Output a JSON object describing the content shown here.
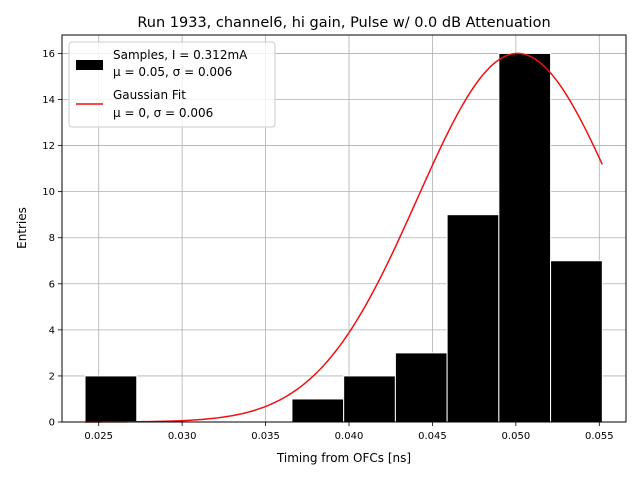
{
  "chart_data": {
    "type": "bar",
    "title": "Run 1933, channel6, hi gain, Pulse w/ 0.0 dB Attenuation",
    "xlabel": "Timing from OFCs [ns]",
    "ylabel": "Entries",
    "xlim": [
      0.0228,
      0.0566
    ],
    "ylim": [
      0,
      16.8
    ],
    "grid": true,
    "legend_position": "upper-left",
    "xticks": [
      "0.025",
      "0.030",
      "0.035",
      "0.040",
      "0.045",
      "0.050",
      "0.055"
    ],
    "yticks": [
      "0",
      "2",
      "4",
      "6",
      "8",
      "10",
      "12",
      "14",
      "16"
    ],
    "histogram": {
      "name": "Samples, I = 0.312mA",
      "stats": "μ = 0.05, σ = 0.006",
      "color": "#000000",
      "edgecolor": "#ffffff",
      "bins": [
        {
          "x0": 0.02418,
          "x1": 0.02728,
          "count": 2
        },
        {
          "x0": 0.02728,
          "x1": 0.03038,
          "count": 0
        },
        {
          "x0": 0.03038,
          "x1": 0.03348,
          "count": 0
        },
        {
          "x0": 0.03348,
          "x1": 0.03658,
          "count": 0
        },
        {
          "x0": 0.03658,
          "x1": 0.03968,
          "count": 1
        },
        {
          "x0": 0.03968,
          "x1": 0.04278,
          "count": 2
        },
        {
          "x0": 0.04278,
          "x1": 0.04588,
          "count": 3
        },
        {
          "x0": 0.04588,
          "x1": 0.04898,
          "count": 9
        },
        {
          "x0": 0.04898,
          "x1": 0.05208,
          "count": 16
        },
        {
          "x0": 0.05208,
          "x1": 0.05518,
          "count": 7
        }
      ]
    },
    "fit": {
      "name": "Gaussian Fit",
      "stats": "μ = 0, σ = 0.006",
      "color": "#ee1111",
      "amplitude": 16,
      "mean": 0.0501,
      "sigma": 0.006,
      "x_range": [
        0.02418,
        0.05518
      ]
    }
  }
}
